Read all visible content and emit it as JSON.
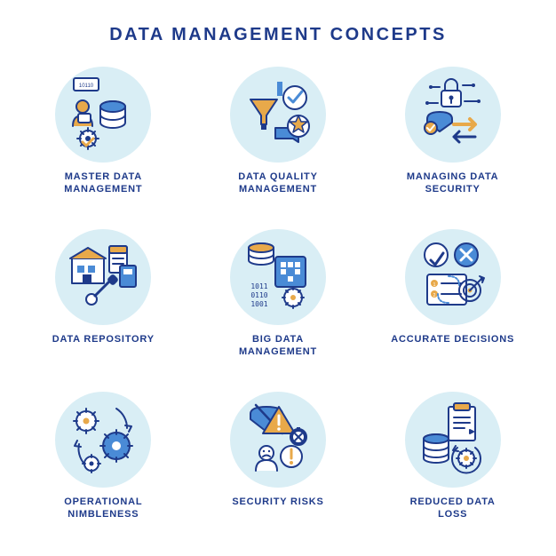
{
  "title": "DATA MANAGEMENT CONCEPTS",
  "title_color": "#1e3a8a",
  "title_fontsize": 20,
  "circle_bg": "#d9eef5",
  "caption_color": "#1e3a8a",
  "caption_fontsize": 11,
  "palette": {
    "navy": "#1e3a8a",
    "blue": "#4a8bd6",
    "orange": "#e8a94a",
    "light": "#d9eef5",
    "white": "#ffffff"
  },
  "stroke_width": 2,
  "items": [
    {
      "label": "MASTER DATA\nMANAGEMENT",
      "icon": "master-data-icon"
    },
    {
      "label": "DATA QUALITY\nMANAGEMENT",
      "icon": "data-quality-icon"
    },
    {
      "label": "MANAGING DATA\nSECURITY",
      "icon": "data-security-icon"
    },
    {
      "label": "DATA REPOSITORY",
      "icon": "data-repository-icon"
    },
    {
      "label": "BIG DATA\nMANAGEMENT",
      "icon": "big-data-icon"
    },
    {
      "label": "ACCURATE DECISIONS",
      "icon": "accurate-decisions-icon"
    },
    {
      "label": "OPERATIONAL\nNIMBLENESS",
      "icon": "operational-nimbleness-icon"
    },
    {
      "label": "SECURITY RISKS",
      "icon": "security-risks-icon"
    },
    {
      "label": "REDUCED DATA\nLOSS",
      "icon": "reduced-data-loss-icon"
    }
  ]
}
